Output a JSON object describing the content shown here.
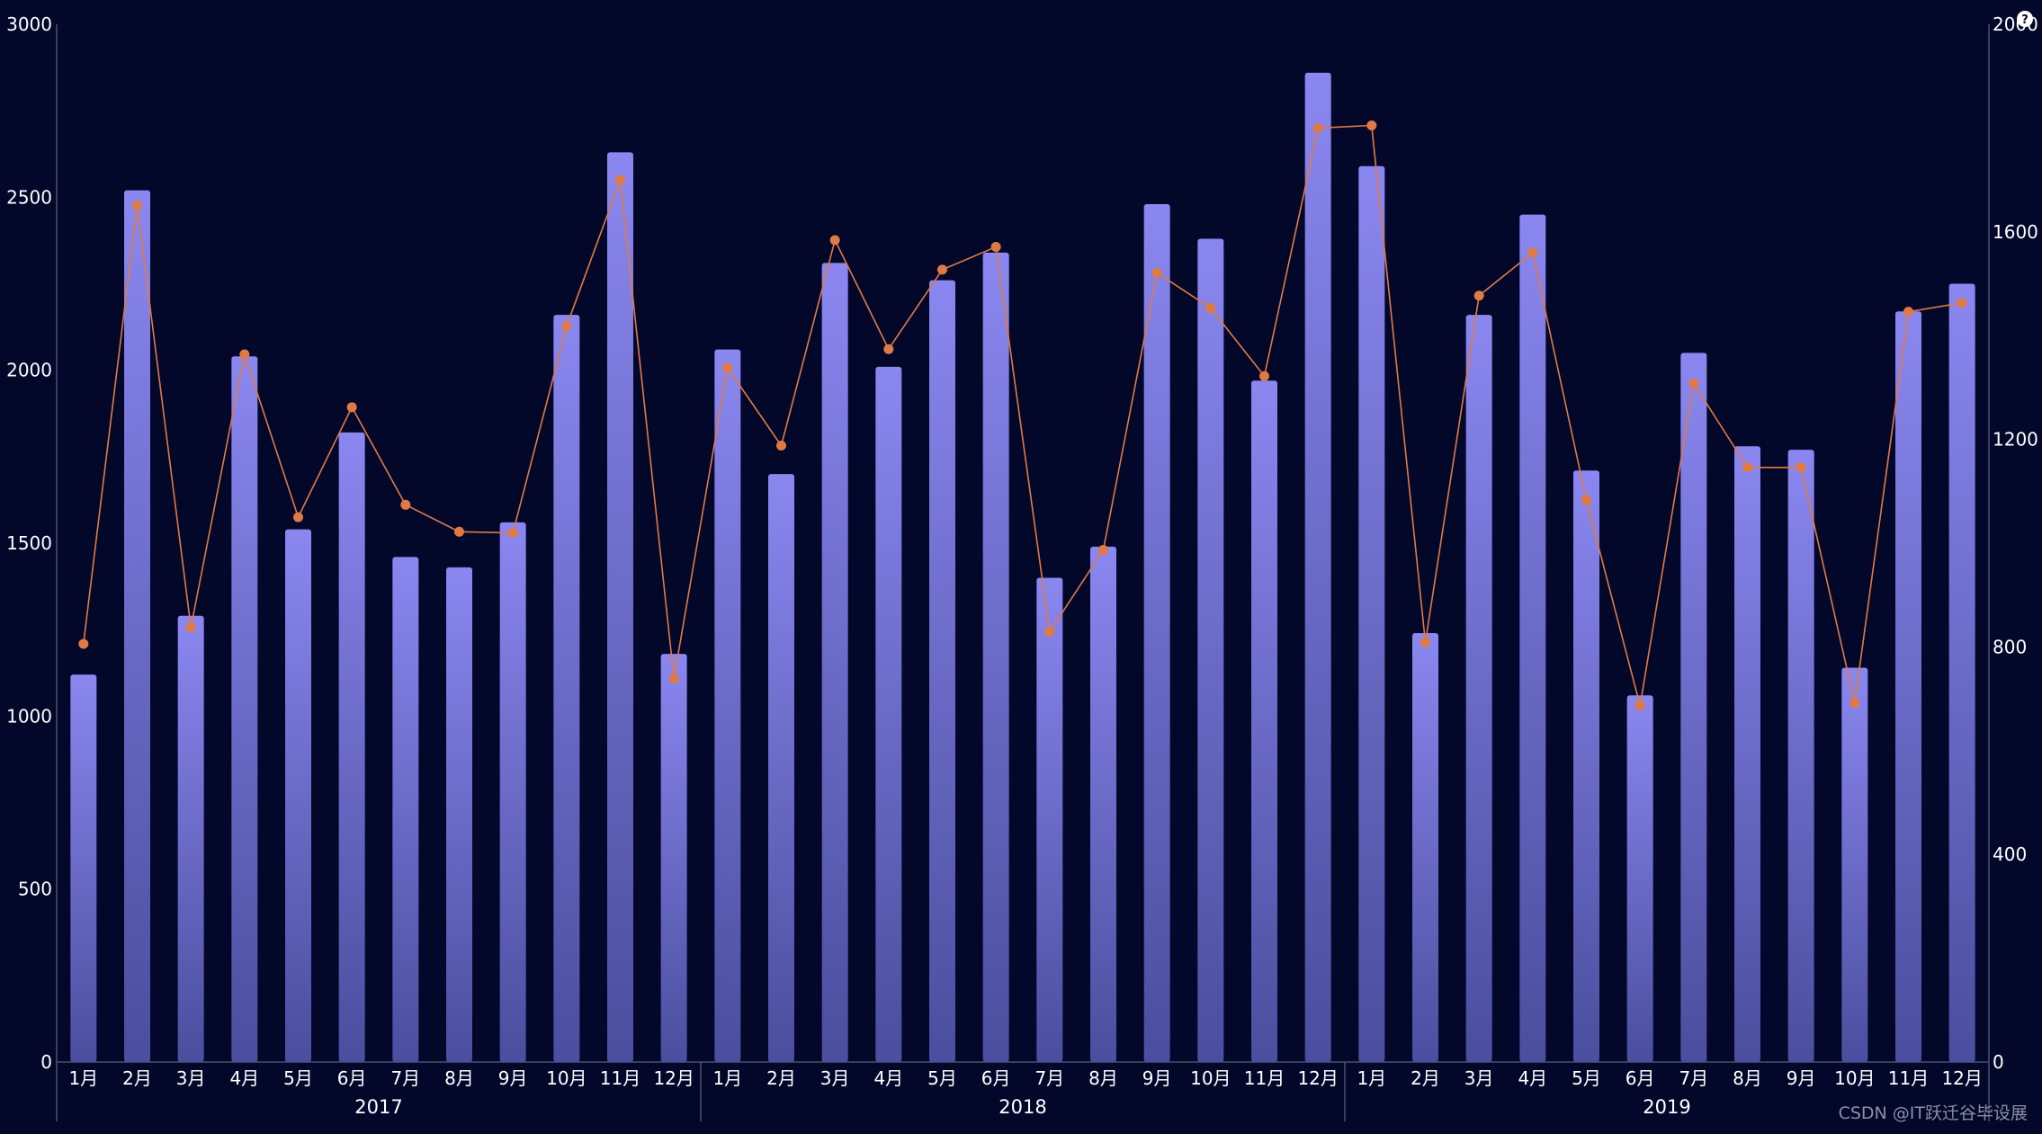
{
  "chart_data": {
    "type": "bar",
    "categories": [
      "1月",
      "2月",
      "3月",
      "4月",
      "5月",
      "6月",
      "7月",
      "8月",
      "9月",
      "10月",
      "11月",
      "12月",
      "1月",
      "2月",
      "3月",
      "4月",
      "5月",
      "6月",
      "7月",
      "8月",
      "9月",
      "10月",
      "11月",
      "12月",
      "1月",
      "2月",
      "3月",
      "4月",
      "5月",
      "6月",
      "7月",
      "8月",
      "9月",
      "10月",
      "11月",
      "12月"
    ],
    "groups": [
      "2017",
      "2018",
      "2019"
    ],
    "series": [
      {
        "type": "bar",
        "axis": "left",
        "values": [
          1120,
          2520,
          1290,
          2040,
          1540,
          1820,
          1460,
          1430,
          1560,
          2160,
          2630,
          1180,
          2060,
          1700,
          2310,
          2010,
          2260,
          2340,
          1400,
          1490,
          2480,
          2380,
          1970,
          2860,
          2590,
          1240,
          2160,
          2450,
          1710,
          1060,
          2050,
          1780,
          1770,
          1140,
          2170,
          2250
        ]
      },
      {
        "type": "line",
        "axis": "right",
        "values": [
          806,
          1651,
          838,
          1364,
          1050,
          1262,
          1074,
          1022,
          1020,
          1418,
          1700,
          739,
          1338,
          1188,
          1584,
          1374,
          1527,
          1571,
          829,
          987,
          1521,
          1453,
          1322,
          1800,
          1805,
          809,
          1477,
          1560,
          1083,
          687,
          1308,
          1146,
          1146,
          692,
          1446,
          1463
        ]
      }
    ],
    "y_left": {
      "min": 0,
      "max": 3000,
      "ticks": [
        "0",
        "500",
        "1000",
        "1500",
        "2000",
        "2500",
        "3000"
      ]
    },
    "y_right": {
      "min": 0,
      "max": 2000,
      "ticks": [
        "0",
        "400",
        "800",
        "1200",
        "1600",
        "2000"
      ]
    },
    "colors": {
      "background": "#03072a",
      "bar_top": "#8a87f0",
      "bar_bottom": "#4b4e9e",
      "line": "#e07a45",
      "axis": "#4a5070",
      "text": "#ffffff"
    },
    "grid": false,
    "legend": "none"
  },
  "watermark": "CSDN @IT跃迁谷毕设展",
  "corner_icon": "help-icon"
}
